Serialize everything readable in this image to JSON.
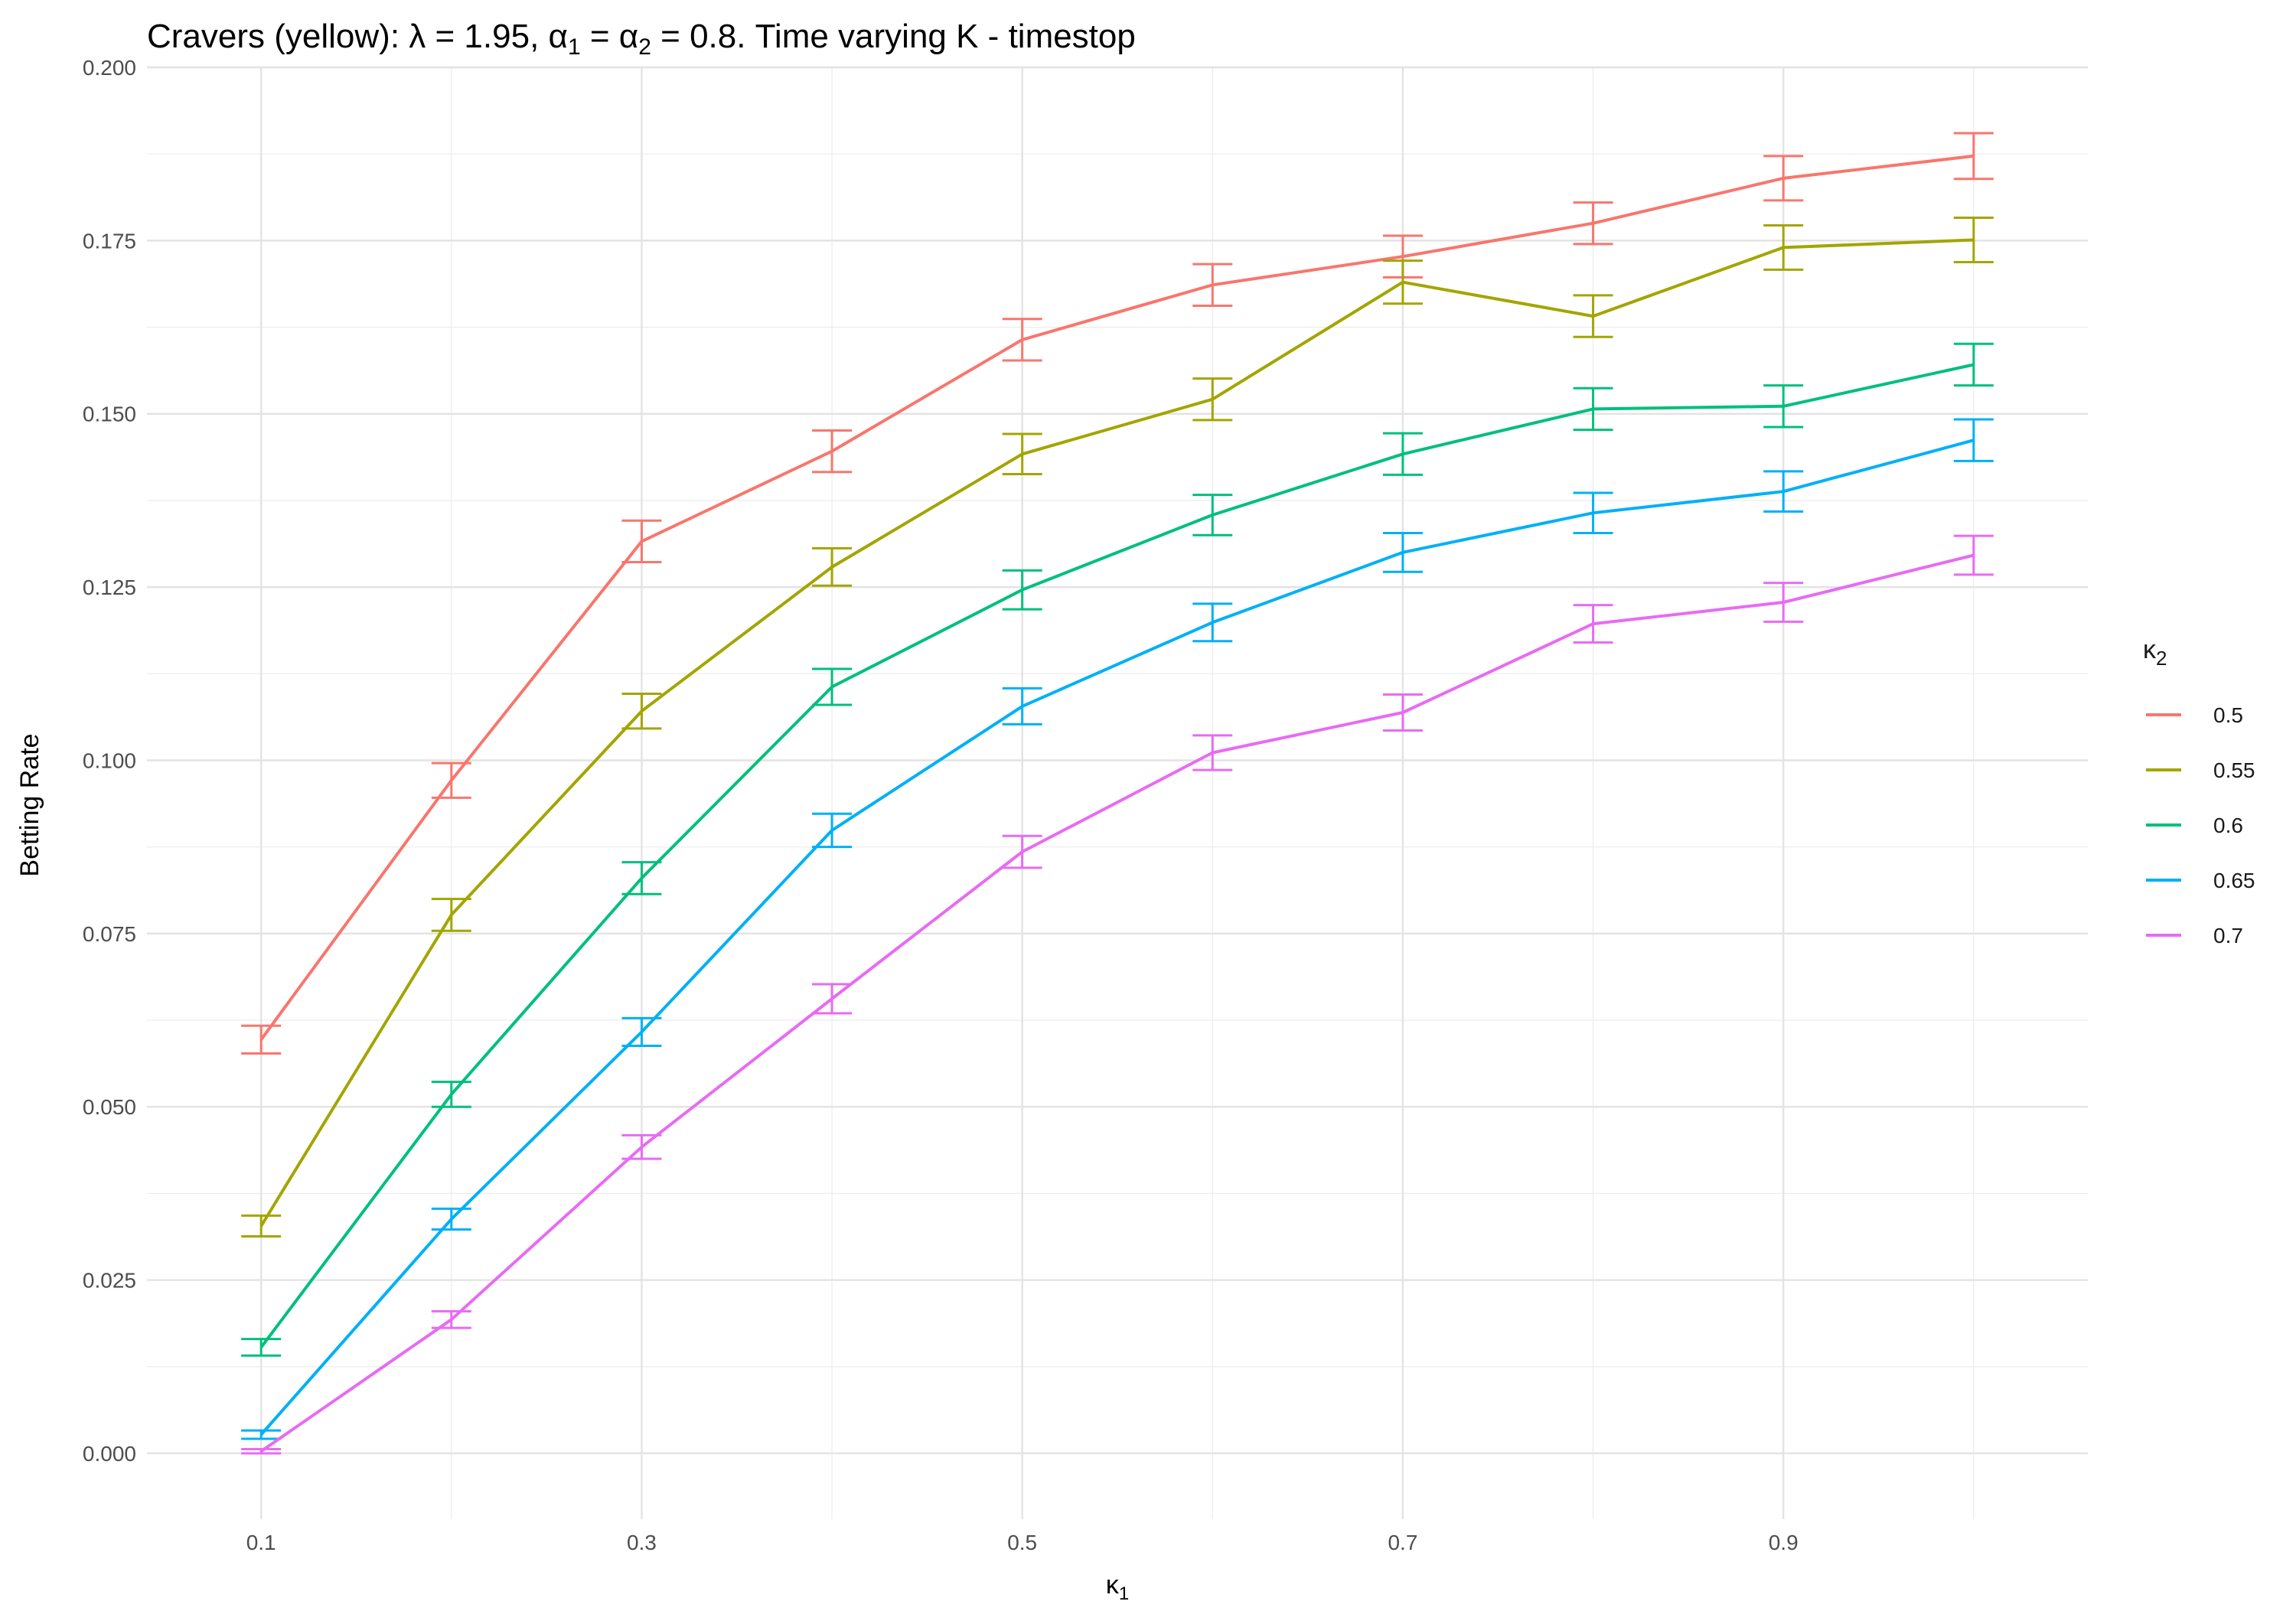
{
  "chart_data": {
    "type": "line",
    "title": {
      "prefix": "Cravers (yellow): ",
      "lambda_symbol": "λ",
      "lambda_rest": " = 1.95, ",
      "alpha_symbol": "α",
      "alpha1_sub": "1",
      "alpha_mid": " = ",
      "alpha2_sub": "2",
      "suffix": " = 0.8. Time varying K - timestop"
    },
    "xlabel": {
      "symbol": "κ",
      "sub": "1"
    },
    "ylabel": "Betting Rate",
    "x": [
      0.1,
      0.2,
      0.3,
      0.4,
      0.5,
      0.6,
      0.7,
      0.8,
      0.9,
      1.0
    ],
    "xlim": [
      0.04,
      1.06
    ],
    "ylim": [
      -0.0095,
      0.2
    ],
    "xticks": [
      0.1,
      0.3,
      0.5,
      0.7,
      0.9
    ],
    "xtick_labels": [
      "0.1",
      "0.3",
      "0.5",
      "0.7",
      "0.9"
    ],
    "yticks": [
      0.0,
      0.025,
      0.05,
      0.075,
      0.1,
      0.125,
      0.15,
      0.175,
      0.2
    ],
    "ytick_labels": [
      "0.000",
      "0.025",
      "0.050",
      "0.075",
      "0.100",
      "0.125",
      "0.150",
      "0.175",
      "0.200"
    ],
    "grid": true,
    "error_bars": true,
    "legend": {
      "title_symbol": "κ",
      "title_sub": "2",
      "position": "right"
    },
    "series": [
      {
        "name": "0.5",
        "color": "#F8766D",
        "values": [
          0.0597,
          0.0971,
          0.1316,
          0.1446,
          0.1607,
          0.1686,
          0.1727,
          0.1775,
          0.184,
          0.1872
        ],
        "errors": [
          0.002,
          0.0025,
          0.003,
          0.003,
          0.003,
          0.003,
          0.003,
          0.003,
          0.0032,
          0.0033
        ]
      },
      {
        "name": "0.55",
        "color": "#A3A500",
        "values": [
          0.0328,
          0.0777,
          0.1071,
          0.1279,
          0.1442,
          0.1521,
          0.169,
          0.1641,
          0.174,
          0.1751
        ],
        "errors": [
          0.0015,
          0.0023,
          0.0025,
          0.0027,
          0.0029,
          0.003,
          0.0031,
          0.003,
          0.0032,
          0.0032
        ]
      },
      {
        "name": "0.6",
        "color": "#00BF7D",
        "values": [
          0.0153,
          0.0518,
          0.083,
          0.1106,
          0.1246,
          0.1354,
          0.1442,
          0.1507,
          0.1511,
          0.1571
        ],
        "errors": [
          0.0012,
          0.0018,
          0.0023,
          0.0026,
          0.0028,
          0.0029,
          0.003,
          0.003,
          0.003,
          0.003
        ]
      },
      {
        "name": "0.65",
        "color": "#00B0F6",
        "values": [
          0.0027,
          0.0338,
          0.0608,
          0.0899,
          0.1078,
          0.1199,
          0.13,
          0.1357,
          0.1388,
          0.1462
        ],
        "errors": [
          0.0006,
          0.0015,
          0.002,
          0.0024,
          0.0026,
          0.0027,
          0.0028,
          0.0029,
          0.0029,
          0.003
        ]
      },
      {
        "name": "0.7",
        "color": "#E76BF3",
        "values": [
          0.0003,
          0.0193,
          0.0442,
          0.0656,
          0.0868,
          0.1011,
          0.1069,
          0.1197,
          0.1228,
          0.1296
        ],
        "errors": [
          0.0003,
          0.0012,
          0.0017,
          0.0021,
          0.0023,
          0.0025,
          0.0026,
          0.0027,
          0.0028,
          0.0028
        ]
      }
    ]
  }
}
